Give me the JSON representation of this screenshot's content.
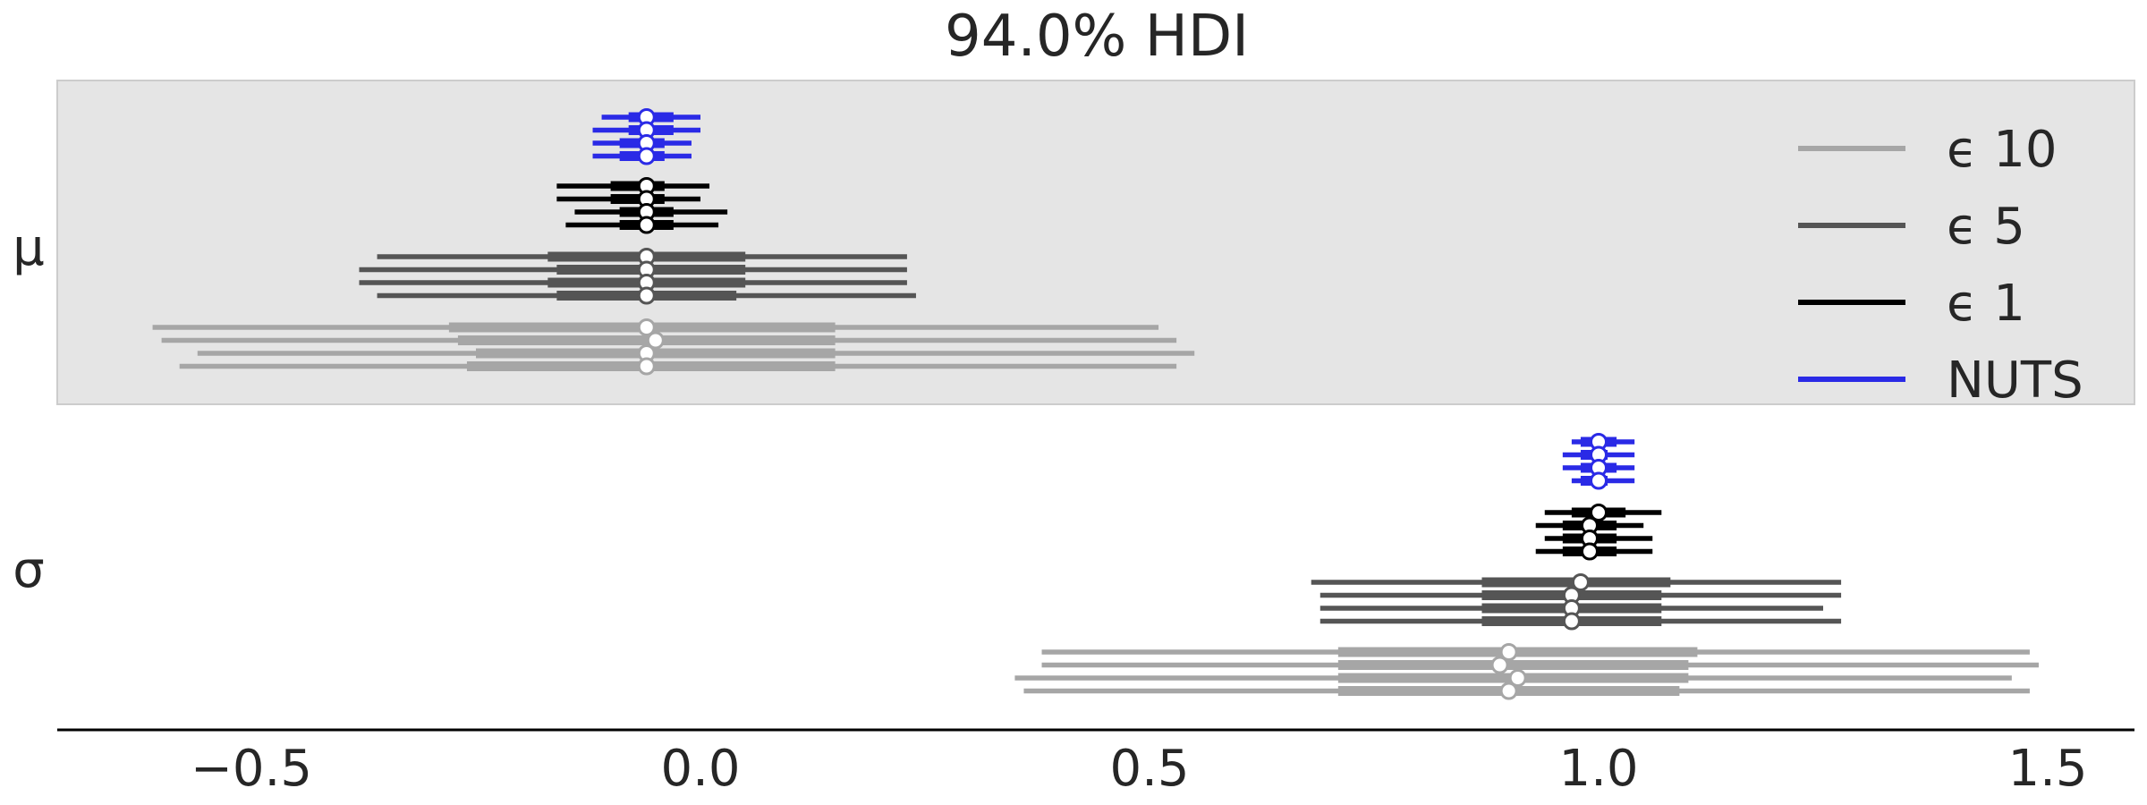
{
  "chart_data": {
    "type": "forest",
    "title": "94.0% HDI",
    "xlim": [
      -0.72,
      1.6
    ],
    "x_ticks": [
      -0.5,
      0.0,
      0.5,
      1.0,
      1.5
    ],
    "x_tick_labels": [
      "−0.5",
      "0.0",
      "0.5",
      "1.0",
      "1.5"
    ],
    "parameters": [
      "μ",
      "σ"
    ],
    "legend": {
      "placement": "upper right",
      "entries": [
        "ϵ 10",
        "ϵ 5",
        "ϵ 1",
        "NUTS"
      ]
    },
    "shaded_band": "μ",
    "colors": {
      "ϵ 10": "#a6a6a6",
      "ϵ 5": "#555555",
      "ϵ 1": "#000000",
      "NUTS": "#2a2ae6",
      "band": "#e5e5e5",
      "axis": "#000000",
      "text": "#262626"
    },
    "series": [
      {
        "name": "NUTS",
        "param": "μ",
        "chains": [
          {
            "hdi": [
              -0.11,
              0.0
            ],
            "iqr": [
              -0.08,
              -0.03
            ],
            "median": -0.06
          },
          {
            "hdi": [
              -0.12,
              -0.0
            ],
            "iqr": [
              -0.08,
              -0.03
            ],
            "median": -0.06
          },
          {
            "hdi": [
              -0.12,
              -0.01
            ],
            "iqr": [
              -0.09,
              -0.04
            ],
            "median": -0.06
          },
          {
            "hdi": [
              -0.12,
              -0.01
            ],
            "iqr": [
              -0.09,
              -0.04
            ],
            "median": -0.06
          }
        ]
      },
      {
        "name": "ϵ 1",
        "param": "μ",
        "chains": [
          {
            "hdi": [
              -0.16,
              0.01
            ],
            "iqr": [
              -0.1,
              -0.04
            ],
            "median": -0.06
          },
          {
            "hdi": [
              -0.16,
              0.0
            ],
            "iqr": [
              -0.1,
              -0.04
            ],
            "median": -0.06
          },
          {
            "hdi": [
              -0.14,
              0.03
            ],
            "iqr": [
              -0.09,
              -0.03
            ],
            "median": -0.06
          },
          {
            "hdi": [
              -0.15,
              0.02
            ],
            "iqr": [
              -0.09,
              -0.03
            ],
            "median": -0.06
          }
        ]
      },
      {
        "name": "ϵ 5",
        "param": "μ",
        "chains": [
          {
            "hdi": [
              -0.36,
              0.23
            ],
            "iqr": [
              -0.17,
              0.05
            ],
            "median": -0.06
          },
          {
            "hdi": [
              -0.38,
              0.23
            ],
            "iqr": [
              -0.16,
              0.05
            ],
            "median": -0.06
          },
          {
            "hdi": [
              -0.38,
              0.23
            ],
            "iqr": [
              -0.17,
              0.05
            ],
            "median": -0.06
          },
          {
            "hdi": [
              -0.36,
              0.24
            ],
            "iqr": [
              -0.16,
              0.04
            ],
            "median": -0.06
          }
        ]
      },
      {
        "name": "ϵ 10",
        "param": "μ",
        "chains": [
          {
            "hdi": [
              -0.61,
              0.51
            ],
            "iqr": [
              -0.28,
              0.15
            ],
            "median": -0.06
          },
          {
            "hdi": [
              -0.6,
              0.53
            ],
            "iqr": [
              -0.27,
              0.15
            ],
            "median": -0.05
          },
          {
            "hdi": [
              -0.56,
              0.55
            ],
            "iqr": [
              -0.25,
              0.15
            ],
            "median": -0.06
          },
          {
            "hdi": [
              -0.58,
              0.53
            ],
            "iqr": [
              -0.26,
              0.15
            ],
            "median": -0.06
          }
        ]
      },
      {
        "name": "NUTS",
        "param": "σ",
        "chains": [
          {
            "hdi": [
              0.97,
              1.04
            ],
            "iqr": [
              0.98,
              1.02
            ],
            "median": 1.0
          },
          {
            "hdi": [
              0.96,
              1.04
            ],
            "iqr": [
              0.98,
              1.01
            ],
            "median": 1.0
          },
          {
            "hdi": [
              0.96,
              1.04
            ],
            "iqr": [
              0.98,
              1.02
            ],
            "median": 1.0
          },
          {
            "hdi": [
              0.97,
              1.04
            ],
            "iqr": [
              0.98,
              1.01
            ],
            "median": 1.0
          }
        ]
      },
      {
        "name": "ϵ 1",
        "param": "σ",
        "chains": [
          {
            "hdi": [
              0.94,
              1.07
            ],
            "iqr": [
              0.97,
              1.03
            ],
            "median": 1.0
          },
          {
            "hdi": [
              0.93,
              1.05
            ],
            "iqr": [
              0.96,
              1.02
            ],
            "median": 0.99
          },
          {
            "hdi": [
              0.94,
              1.06
            ],
            "iqr": [
              0.96,
              1.02
            ],
            "median": 0.99
          },
          {
            "hdi": [
              0.93,
              1.06
            ],
            "iqr": [
              0.96,
              1.02
            ],
            "median": 0.99
          }
        ]
      },
      {
        "name": "ϵ 5",
        "param": "σ",
        "chains": [
          {
            "hdi": [
              0.68,
              1.27
            ],
            "iqr": [
              0.87,
              1.08
            ],
            "median": 0.98
          },
          {
            "hdi": [
              0.69,
              1.27
            ],
            "iqr": [
              0.87,
              1.07
            ],
            "median": 0.97
          },
          {
            "hdi": [
              0.69,
              1.25
            ],
            "iqr": [
              0.87,
              1.07
            ],
            "median": 0.97
          },
          {
            "hdi": [
              0.69,
              1.27
            ],
            "iqr": [
              0.87,
              1.07
            ],
            "median": 0.97
          }
        ]
      },
      {
        "name": "ϵ 10",
        "param": "σ",
        "chains": [
          {
            "hdi": [
              0.38,
              1.48
            ],
            "iqr": [
              0.71,
              1.11
            ],
            "median": 0.9
          },
          {
            "hdi": [
              0.38,
              1.49
            ],
            "iqr": [
              0.71,
              1.1
            ],
            "median": 0.89
          },
          {
            "hdi": [
              0.35,
              1.46
            ],
            "iqr": [
              0.71,
              1.1
            ],
            "median": 0.91
          },
          {
            "hdi": [
              0.36,
              1.48
            ],
            "iqr": [
              0.71,
              1.09
            ],
            "median": 0.9
          }
        ]
      }
    ]
  }
}
